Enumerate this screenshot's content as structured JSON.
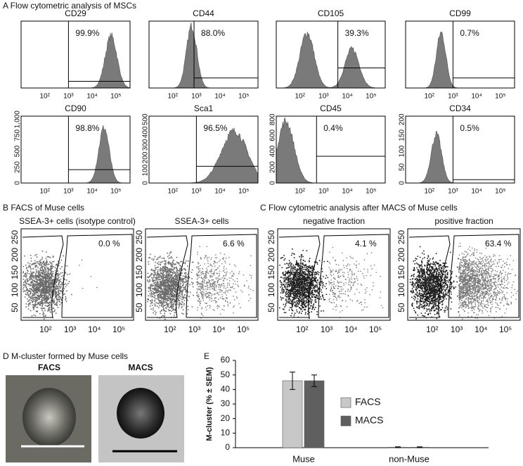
{
  "panel_a": {
    "title": "A Flow cytometric analysis of MSCs",
    "x_tick_labels": [
      "10²",
      "10³",
      "10⁴",
      "10⁵"
    ],
    "histograms": [
      {
        "label": "CD29",
        "percent": "99.9%"
      },
      {
        "label": "CD44",
        "percent": "88.0%"
      },
      {
        "label": "CD105",
        "percent": "39.3%"
      },
      {
        "label": "CD99",
        "percent": "0.7%"
      },
      {
        "label": "CD90",
        "percent": "98.8%",
        "y_tick_labels": [
          "0",
          "250",
          "500",
          "750",
          "1,000"
        ]
      },
      {
        "label": "Sca1",
        "percent": "96.5%",
        "y_tick_labels": [
          "0",
          "100",
          "200",
          "300",
          "400",
          "500"
        ]
      },
      {
        "label": "CD45",
        "percent": "0.4%",
        "y_tick_labels": [
          "0",
          "200",
          "400",
          "600",
          "800"
        ]
      },
      {
        "label": "CD34",
        "percent": "0.5%",
        "y_tick_labels": [
          "0",
          "50",
          "100",
          "150",
          "200"
        ]
      }
    ]
  },
  "panel_b": {
    "title": "B FACS of Muse cells",
    "y_tick_labels": [
      "50",
      "100",
      "150",
      "200",
      "250"
    ],
    "x_tick_labels": [
      "10²",
      "10³",
      "10⁴",
      "10⁵"
    ],
    "plots": [
      {
        "label": "SSEA-3+ cells (isotype control)",
        "percent": "0.0 %"
      },
      {
        "label": "SSEA-3+ cells",
        "percent": "6.6 %"
      }
    ]
  },
  "panel_c": {
    "title": "C Flow cytometric analysis after MACS of Muse cells",
    "y_tick_labels": [
      "50",
      "100",
      "150",
      "200",
      "250"
    ],
    "x_tick_labels": [
      "10²",
      "10³",
      "10⁴",
      "10⁵"
    ],
    "plots": [
      {
        "label": "negative fraction",
        "percent": "4.1 %"
      },
      {
        "label": "positive fraction",
        "percent": "63.4 %"
      }
    ]
  },
  "panel_d": {
    "title": "D M-cluster formed by Muse cells",
    "images": [
      {
        "label": "FACS"
      },
      {
        "label": "MACS"
      }
    ]
  },
  "chart_data": {
    "type": "bar",
    "panel_label": "E",
    "y_label": "M-cluster (% ± SEM)",
    "categories": [
      "Muse",
      "non-Muse"
    ],
    "series": [
      {
        "name": "FACS",
        "color": "#c8c8c8",
        "values": [
          46,
          0.3
        ],
        "errors": [
          6,
          0.3
        ]
      },
      {
        "name": "MACS",
        "color": "#5f5f5f",
        "values": [
          46,
          0.3
        ],
        "errors": [
          4,
          0.3
        ]
      }
    ],
    "ylim": [
      0,
      60
    ],
    "yticks": [
      0,
      10,
      20,
      30,
      40,
      50,
      60
    ]
  }
}
